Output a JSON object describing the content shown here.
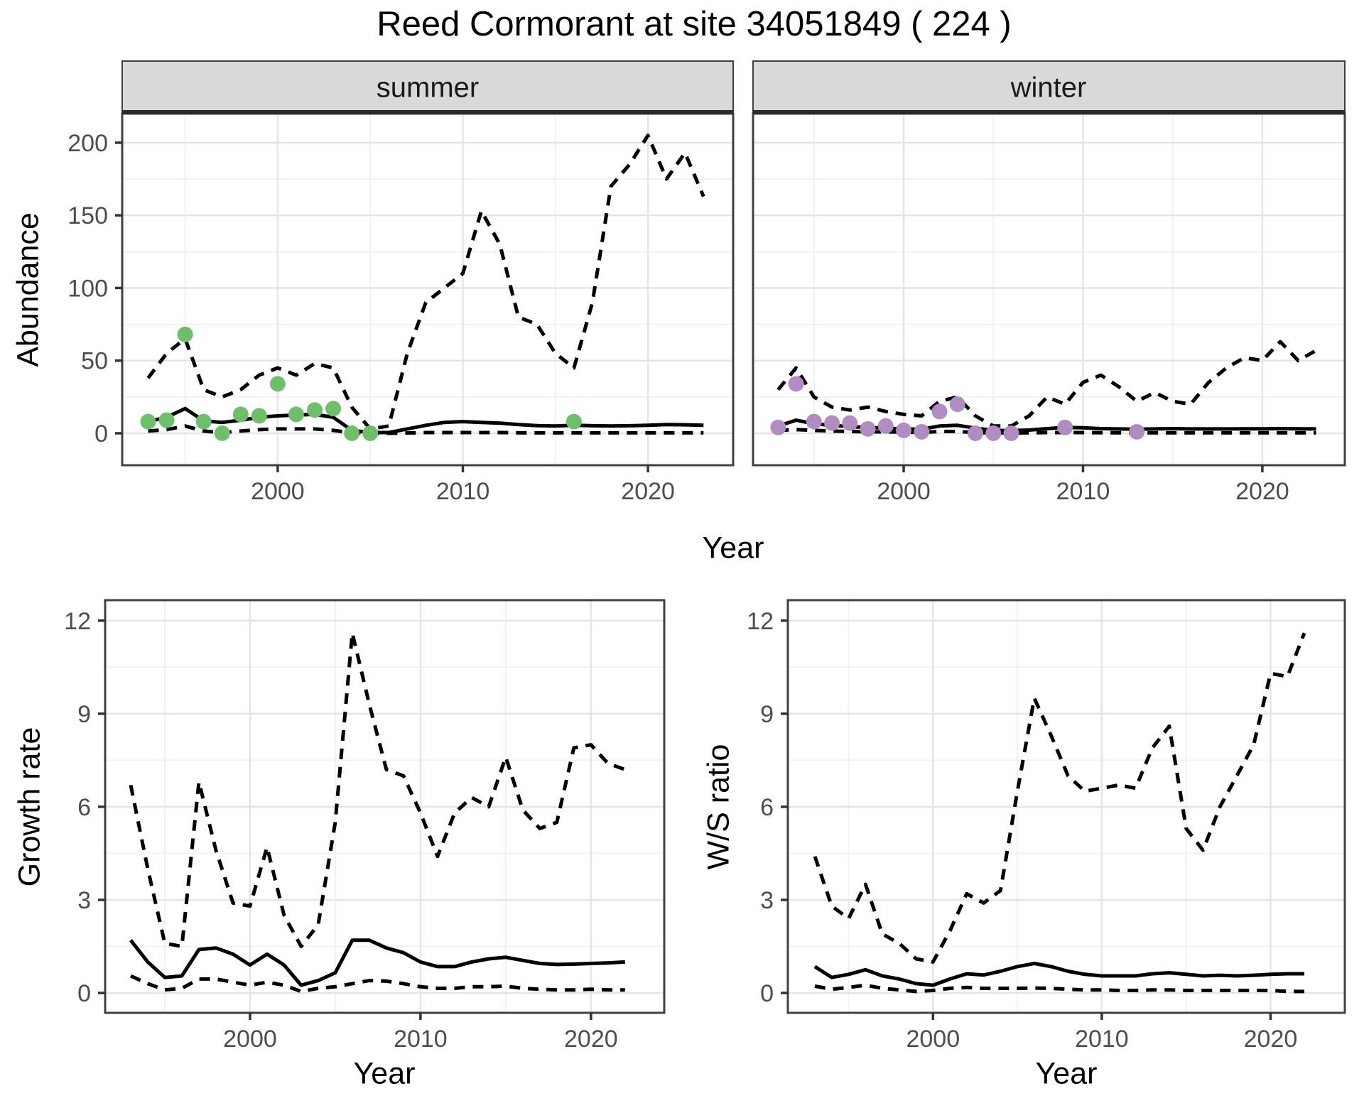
{
  "title": "Reed Cormorant at site 34051849 ( 224 )",
  "facets": [
    "summer",
    "winter"
  ],
  "axes": {
    "xlabel": "Year",
    "abundance_ylabel": "Abundance",
    "growth_ylabel": "Growth rate",
    "ws_ylabel": "W/S ratio"
  },
  "style": {
    "summer_point_color": "#6DBF6A",
    "winter_point_color": "#AF8DC3",
    "line_color": "#000000",
    "panel_border_color": "#404040",
    "strip_fill": "#D9D9D9",
    "strip_border": "#3f3f3f",
    "grid_major": "#E4E4E4",
    "grid_minor": "#F0F0F0",
    "tick_color": "#333333",
    "tick_label_color": "#4D4D4D"
  },
  "chart_data": [
    {
      "panel": "summer",
      "type": "line",
      "facet_label": "summer",
      "ylabel": "Abundance",
      "xlabel": "Year",
      "xlim": [
        1991.6,
        2024.6
      ],
      "ylim": [
        -22,
        220
      ],
      "xticks": [
        2000,
        2010,
        2020
      ],
      "xminor": [
        1995,
        2005,
        2015
      ],
      "yticks": [
        0,
        50,
        100,
        150,
        200
      ],
      "yminor": [
        25,
        75,
        125,
        175
      ],
      "grid": true,
      "legend": "none",
      "years": [
        1993,
        1994,
        1995,
        1996,
        1997,
        1998,
        1999,
        2000,
        2001,
        2002,
        2003,
        2004,
        2005,
        2006,
        2007,
        2008,
        2009,
        2010,
        2011,
        2012,
        2013,
        2014,
        2015,
        2016,
        2017,
        2018,
        2019,
        2020,
        2021,
        2022,
        2023
      ],
      "series": [
        {
          "name": "upper-95ci",
          "style": "dashed",
          "y": [
            38,
            55,
            65,
            30,
            25,
            30,
            40,
            45,
            40,
            48,
            45,
            18,
            3,
            5,
            55,
            90,
            100,
            110,
            153,
            130,
            80,
            75,
            55,
            45,
            90,
            170,
            185,
            205,
            175,
            193,
            163
          ]
        },
        {
          "name": "lower-95ci",
          "style": "dashed",
          "y": [
            1.5,
            2.5,
            5,
            1.5,
            0.5,
            1.5,
            2.5,
            3,
            3,
            3,
            2,
            0.2,
            0,
            0,
            0.2,
            0.5,
            0.5,
            0.5,
            0.5,
            0.5,
            0.3,
            0.3,
            0.3,
            0.3,
            0.3,
            0.3,
            0.3,
            0.3,
            0.3,
            0.3,
            0.3
          ]
        },
        {
          "name": "fitted-median",
          "style": "solid",
          "y": [
            8,
            11,
            17,
            8.5,
            7.5,
            9,
            11,
            12,
            12.5,
            13,
            11,
            2,
            0.5,
            0.5,
            3,
            5.5,
            7.5,
            8,
            7.5,
            7,
            6,
            5.3,
            5,
            5.5,
            5.2,
            5,
            5.2,
            5.5,
            6,
            5.8,
            5.5
          ]
        },
        {
          "name": "observed-counts",
          "style": "points",
          "color": "#6DBF6A",
          "x": [
            1993,
            1994,
            1995,
            1996,
            1997,
            1998,
            1999,
            2000,
            2001,
            2002,
            2003,
            2004,
            2005,
            2016
          ],
          "y": [
            8,
            9,
            68,
            8,
            0,
            13,
            12,
            34,
            13,
            16,
            17,
            0,
            0,
            8
          ]
        }
      ]
    },
    {
      "panel": "winter",
      "type": "line",
      "facet_label": "winter",
      "ylabel": "Abundance",
      "xlabel": "Year",
      "xlim": [
        1991.6,
        2024.6
      ],
      "ylim": [
        -22,
        220
      ],
      "xticks": [
        2000,
        2010,
        2020
      ],
      "xminor": [
        1995,
        2005,
        2015
      ],
      "yticks": [
        0,
        50,
        100,
        150,
        200
      ],
      "yminor": [
        25,
        75,
        125,
        175
      ],
      "grid": true,
      "legend": "none",
      "years": [
        1993,
        1994,
        1995,
        1996,
        1997,
        1998,
        1999,
        2000,
        2001,
        2002,
        2003,
        2004,
        2005,
        2006,
        2007,
        2008,
        2009,
        2010,
        2011,
        2012,
        2013,
        2014,
        2015,
        2016,
        2017,
        2018,
        2019,
        2020,
        2021,
        2022,
        2023
      ],
      "series": [
        {
          "name": "upper-95ci",
          "style": "dashed",
          "y": [
            30,
            45,
            25,
            18,
            16,
            18,
            15,
            13,
            12,
            22,
            25,
            12,
            5,
            5,
            12,
            25,
            20,
            35,
            40,
            32,
            22,
            28,
            22,
            20,
            35,
            45,
            52,
            50,
            63,
            50,
            57
          ]
        },
        {
          "name": "lower-95ci",
          "style": "dashed",
          "y": [
            2,
            2.5,
            2,
            1.5,
            1.2,
            1,
            1,
            0.8,
            0.6,
            1.2,
            1.2,
            0.5,
            0.2,
            0.2,
            0.3,
            0.5,
            0.5,
            0.5,
            0.4,
            0.3,
            0.3,
            0.3,
            0.3,
            0.3,
            0.3,
            0.3,
            0.3,
            0.3,
            0.3,
            0.3,
            0.3
          ]
        },
        {
          "name": "fitted-median",
          "style": "solid",
          "y": [
            5,
            9,
            6.5,
            5.5,
            4.5,
            4,
            3.5,
            3,
            2.8,
            5,
            5.5,
            3.5,
            2,
            1.8,
            2.2,
            3.2,
            4,
            3.8,
            3.2,
            3,
            2.8,
            3,
            3.2,
            3,
            3,
            3,
            3.1,
            3.1,
            3.2,
            3.1,
            3
          ]
        },
        {
          "name": "observed-counts",
          "style": "points",
          "color": "#AF8DC3",
          "x": [
            1993,
            1994,
            1995,
            1996,
            1997,
            1998,
            1999,
            2000,
            2001,
            2002,
            2003,
            2004,
            2005,
            2006,
            2009,
            2013
          ],
          "y": [
            4,
            34,
            8,
            7,
            7,
            3,
            5,
            2,
            1,
            15,
            20,
            0,
            0,
            0,
            4,
            1
          ]
        }
      ]
    },
    {
      "panel": "growth",
      "type": "line",
      "ylabel": "Growth rate",
      "xlabel": "Year",
      "xlim": [
        1991.5,
        2024.3
      ],
      "ylim": [
        -0.64,
        12.66
      ],
      "xticks": [
        2000,
        2010,
        2020
      ],
      "xminor": [
        1995,
        2005,
        2015
      ],
      "yticks": [
        0,
        3,
        6,
        9,
        12
      ],
      "yminor": [
        1.5,
        4.5,
        7.5,
        10.5
      ],
      "grid": true,
      "legend": "none",
      "years": [
        1993,
        1994,
        1995,
        1996,
        1997,
        1998,
        1999,
        2000,
        2001,
        2002,
        2003,
        2004,
        2005,
        2006,
        2007,
        2008,
        2009,
        2010,
        2011,
        2012,
        2013,
        2014,
        2015,
        2016,
        2017,
        2018,
        2019,
        2020,
        2021,
        2022
      ],
      "series": [
        {
          "name": "upper-95ci",
          "style": "dashed",
          "y": [
            6.7,
            4.0,
            1.6,
            1.5,
            6.8,
            4.6,
            2.9,
            2.8,
            4.7,
            2.5,
            1.5,
            2.2,
            5.5,
            11.6,
            9.3,
            7.2,
            7.0,
            5.8,
            4.4,
            5.8,
            6.3,
            6.0,
            7.6,
            5.9,
            5.3,
            5.5,
            7.9,
            8.0,
            7.4,
            7.2
          ]
        },
        {
          "name": "lower-95ci",
          "style": "dashed",
          "y": [
            0.55,
            0.3,
            0.1,
            0.15,
            0.45,
            0.45,
            0.35,
            0.25,
            0.35,
            0.25,
            0.05,
            0.15,
            0.2,
            0.3,
            0.4,
            0.38,
            0.3,
            0.2,
            0.15,
            0.15,
            0.2,
            0.2,
            0.22,
            0.15,
            0.12,
            0.1,
            0.1,
            0.12,
            0.1,
            0.1
          ]
        },
        {
          "name": "fitted-median",
          "style": "solid",
          "y": [
            1.7,
            1.0,
            0.5,
            0.55,
            1.4,
            1.45,
            1.25,
            0.9,
            1.25,
            0.9,
            0.25,
            0.4,
            0.65,
            1.7,
            1.7,
            1.45,
            1.3,
            1.0,
            0.85,
            0.85,
            1.0,
            1.1,
            1.15,
            1.05,
            0.95,
            0.92,
            0.93,
            0.95,
            0.97,
            1.0
          ]
        }
      ]
    },
    {
      "panel": "ws",
      "type": "line",
      "ylabel": "W/S ratio",
      "xlabel": "Year",
      "xlim": [
        1991.4,
        2024.4
      ],
      "ylim": [
        -0.64,
        12.66
      ],
      "xticks": [
        2000,
        2010,
        2020
      ],
      "xminor": [
        1995,
        2005,
        2015
      ],
      "yticks": [
        0,
        3,
        6,
        9,
        12
      ],
      "yminor": [
        1.5,
        4.5,
        7.5,
        10.5
      ],
      "grid": true,
      "legend": "none",
      "years": [
        1993,
        1994,
        1995,
        1996,
        1997,
        1998,
        1999,
        2000,
        2001,
        2002,
        2003,
        2004,
        2005,
        2006,
        2007,
        2008,
        2009,
        2010,
        2011,
        2012,
        2013,
        2014,
        2015,
        2016,
        2017,
        2018,
        2019,
        2020,
        2021,
        2022
      ],
      "series": [
        {
          "name": "upper-95ci",
          "style": "dashed",
          "y": [
            4.4,
            2.8,
            2.4,
            3.5,
            1.9,
            1.6,
            1.1,
            1.0,
            2.0,
            3.2,
            2.9,
            3.3,
            6.5,
            9.5,
            8.3,
            7.0,
            6.5,
            6.6,
            6.7,
            6.6,
            7.9,
            8.6,
            5.3,
            4.6,
            6.0,
            7.0,
            8.0,
            10.3,
            10.2,
            11.6
          ]
        },
        {
          "name": "lower-95ci",
          "style": "dashed",
          "y": [
            0.22,
            0.12,
            0.18,
            0.25,
            0.15,
            0.1,
            0.05,
            0.08,
            0.15,
            0.18,
            0.15,
            0.15,
            0.15,
            0.16,
            0.15,
            0.12,
            0.1,
            0.1,
            0.08,
            0.08,
            0.1,
            0.1,
            0.08,
            0.08,
            0.08,
            0.08,
            0.08,
            0.08,
            0.05,
            0.05
          ]
        },
        {
          "name": "fitted-median",
          "style": "solid",
          "y": [
            0.85,
            0.5,
            0.6,
            0.75,
            0.55,
            0.45,
            0.3,
            0.25,
            0.45,
            0.62,
            0.58,
            0.7,
            0.85,
            0.95,
            0.85,
            0.7,
            0.6,
            0.55,
            0.55,
            0.55,
            0.62,
            0.65,
            0.6,
            0.55,
            0.57,
            0.55,
            0.57,
            0.6,
            0.62,
            0.62
          ]
        }
      ]
    }
  ]
}
